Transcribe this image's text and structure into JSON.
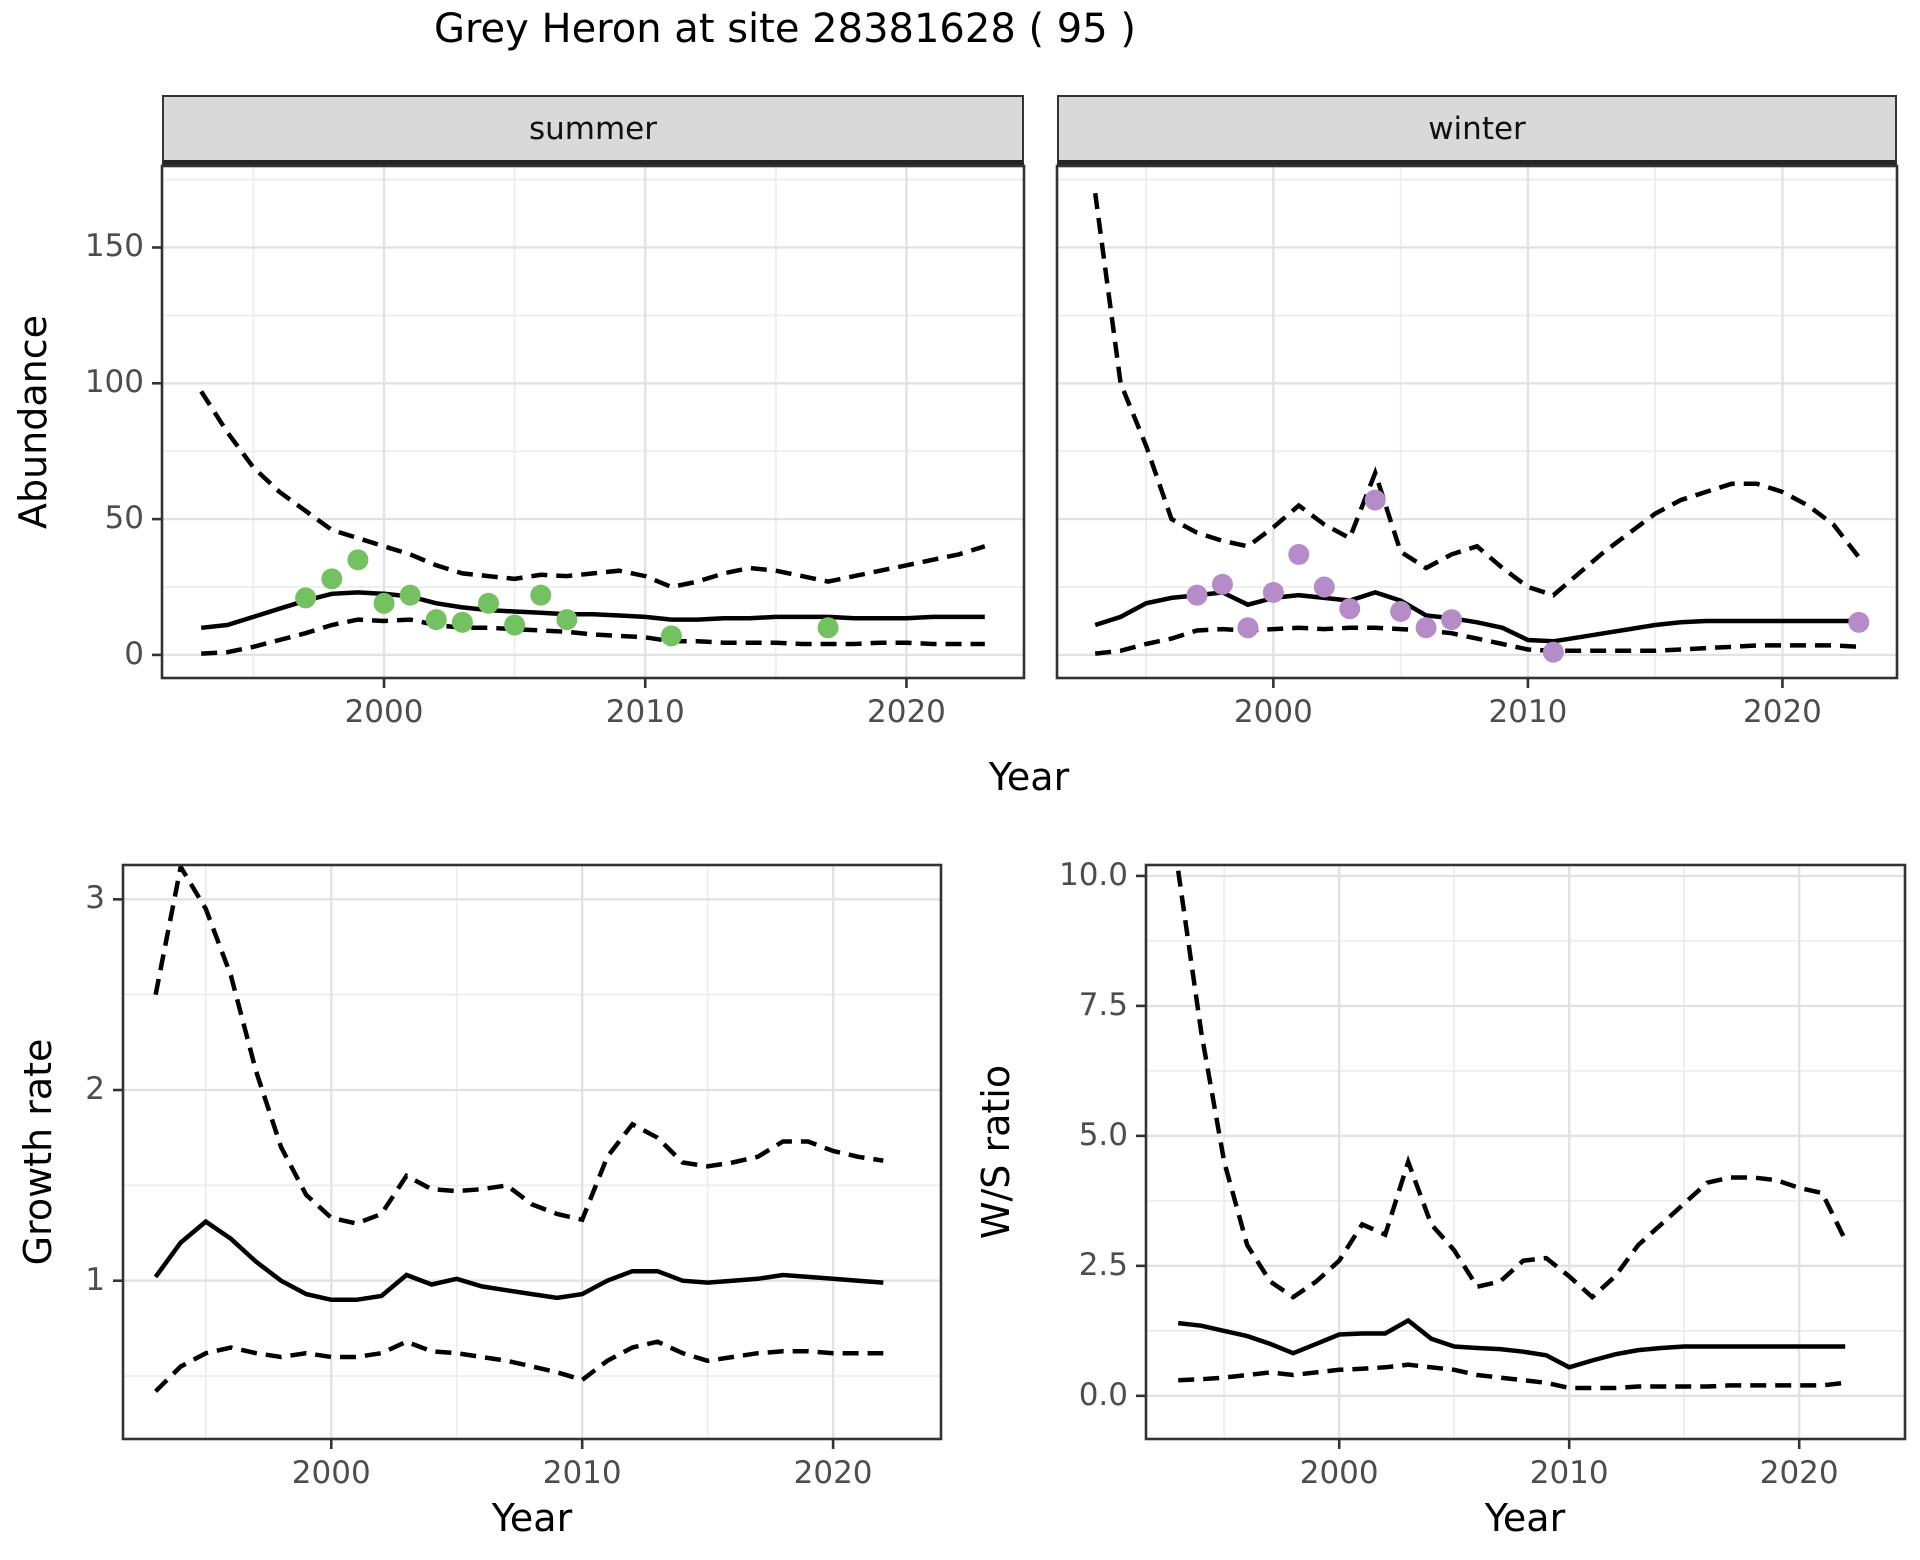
{
  "title": "Grey Heron at site 28381628 ( 95 )",
  "colors": {
    "summer_point": "#74C161",
    "winter_point": "#B58CC8",
    "line": "#000000",
    "grid_major": "#E2E2E2",
    "grid_minor": "#EDEDED",
    "strip_bg": "#D9D9D9",
    "panel_border": "#333333",
    "axis_text": "#4D4D4D"
  },
  "chart_data": [
    {
      "id": "abundance-summer",
      "type": "line",
      "facet_label": "summer",
      "xlabel": "Year",
      "ylabel": "Abundance",
      "xlim": [
        1991.5,
        2024.5
      ],
      "ylim": [
        -8.5,
        180
      ],
      "grid": true,
      "legend": "none",
      "xticks": {
        "major": [
          2000,
          2010,
          2020
        ],
        "major_labels": [
          "2000",
          "2010",
          "2020"
        ],
        "minor": [
          1995,
          2005,
          2015
        ]
      },
      "yticks": {
        "major": [
          0,
          50,
          100,
          150
        ],
        "major_labels": [
          "0",
          "50",
          "100",
          "150"
        ],
        "minor": [
          25,
          75,
          125,
          175
        ]
      },
      "series": [
        {
          "name": "upper-ci",
          "style": "dashed",
          "x": [
            1993,
            1994,
            1995,
            1996,
            1997,
            1998,
            1999,
            2000,
            2001,
            2002,
            2003,
            2004,
            2005,
            2006,
            2007,
            2008,
            2009,
            2010,
            2011,
            2012,
            2013,
            2014,
            2015,
            2016,
            2017,
            2018,
            2019,
            2020,
            2021,
            2022,
            2023
          ],
          "y": [
            97,
            82,
            69,
            60,
            53,
            46,
            43,
            40,
            37,
            33,
            30,
            29,
            28,
            29.5,
            29,
            30,
            31,
            29,
            25,
            27,
            30,
            32,
            31,
            29,
            27,
            29,
            31,
            33,
            35,
            37,
            40
          ]
        },
        {
          "name": "mean",
          "style": "solid",
          "x": [
            1993,
            1994,
            1995,
            1996,
            1997,
            1998,
            1999,
            2000,
            2001,
            2002,
            2003,
            2004,
            2005,
            2006,
            2007,
            2008,
            2009,
            2010,
            2011,
            2012,
            2013,
            2014,
            2015,
            2016,
            2017,
            2018,
            2019,
            2020,
            2021,
            2022,
            2023
          ],
          "y": [
            10,
            11,
            14,
            17,
            20,
            22.5,
            23,
            22.5,
            21.5,
            19,
            17.5,
            16.5,
            16,
            15.5,
            15,
            15,
            14.5,
            14,
            13,
            13,
            13.5,
            13.5,
            14,
            14,
            14,
            13.5,
            13.5,
            13.5,
            14,
            14,
            14
          ]
        },
        {
          "name": "lower-ci",
          "style": "dashed",
          "x": [
            1993,
            1994,
            1995,
            1996,
            1997,
            1998,
            1999,
            2000,
            2001,
            2002,
            2003,
            2004,
            2005,
            2006,
            2007,
            2008,
            2009,
            2010,
            2011,
            2012,
            2013,
            2014,
            2015,
            2016,
            2017,
            2018,
            2019,
            2020,
            2021,
            2022,
            2023
          ],
          "y": [
            0.5,
            1,
            3,
            5.5,
            8,
            11,
            13,
            12.5,
            13,
            11,
            10,
            10,
            9.5,
            9,
            8.5,
            7.5,
            7,
            6.5,
            5,
            5,
            4.5,
            4.5,
            4.5,
            4,
            4,
            4,
            4.5,
            4.5,
            4,
            4,
            4
          ]
        },
        {
          "name": "observations",
          "style": "points",
          "color_key": "summer_point",
          "x": [
            1997,
            1998,
            1999,
            2000,
            2001,
            2002,
            2003,
            2004,
            2005,
            2006,
            2007,
            2011,
            2017
          ],
          "y": [
            21,
            28,
            35,
            19,
            22,
            13,
            12,
            19,
            11,
            22,
            13,
            7,
            10
          ]
        }
      ]
    },
    {
      "id": "abundance-winter",
      "type": "line",
      "facet_label": "winter",
      "xlabel": "Year",
      "ylabel": "Abundance",
      "xlim": [
        1991.5,
        2024.5
      ],
      "ylim": [
        -8.5,
        180
      ],
      "grid": true,
      "legend": "none",
      "xticks": {
        "major": [
          2000,
          2010,
          2020
        ],
        "major_labels": [
          "2000",
          "2010",
          "2020"
        ],
        "minor": [
          1995,
          2005,
          2015
        ]
      },
      "yticks": {
        "major": [
          0,
          50,
          100,
          150
        ],
        "major_labels": [
          "0",
          "50",
          "100",
          "150"
        ],
        "minor": [
          25,
          75,
          125,
          175
        ]
      },
      "series": [
        {
          "name": "upper-ci",
          "style": "dashed",
          "x": [
            1993,
            1994,
            1995,
            1996,
            1997,
            1998,
            1999,
            2000,
            2001,
            2002,
            2003,
            2004,
            2005,
            2006,
            2007,
            2008,
            2009,
            2010,
            2011,
            2012,
            2013,
            2014,
            2015,
            2016,
            2017,
            2018,
            2019,
            2020,
            2021,
            2022,
            2023
          ],
          "y": [
            170,
            100,
            77,
            50,
            45,
            42,
            40,
            47,
            55,
            48,
            43,
            67,
            38,
            32,
            37,
            40,
            32,
            25,
            22,
            30,
            38,
            45,
            52,
            57,
            60,
            63,
            63,
            60,
            55,
            48,
            36
          ]
        },
        {
          "name": "mean",
          "style": "solid",
          "x": [
            1993,
            1994,
            1995,
            1996,
            1997,
            1998,
            1999,
            2000,
            2001,
            2002,
            2003,
            2004,
            2005,
            2006,
            2007,
            2008,
            2009,
            2010,
            2011,
            2012,
            2013,
            2014,
            2015,
            2016,
            2017,
            2018,
            2019,
            2020,
            2021,
            2022,
            2023
          ],
          "y": [
            11,
            14,
            19,
            21,
            22,
            23,
            18.5,
            21,
            22,
            21,
            20,
            23,
            20,
            14.5,
            13.5,
            12,
            10,
            5.5,
            5,
            6.5,
            8,
            9.5,
            11,
            12,
            12.5,
            12.5,
            12.5,
            12.5,
            12.5,
            12.5,
            12.5
          ]
        },
        {
          "name": "lower-ci",
          "style": "dashed",
          "x": [
            1993,
            1994,
            1995,
            1996,
            1997,
            1998,
            1999,
            2000,
            2001,
            2002,
            2003,
            2004,
            2005,
            2006,
            2007,
            2008,
            2009,
            2010,
            2011,
            2012,
            2013,
            2014,
            2015,
            2016,
            2017,
            2018,
            2019,
            2020,
            2021,
            2022,
            2023
          ],
          "y": [
            0.5,
            1.5,
            4,
            6,
            9,
            9.5,
            9,
            9.5,
            10,
            9.5,
            10,
            10,
            9.5,
            9,
            8,
            6,
            4,
            2,
            1.5,
            1.5,
            1.5,
            1.5,
            1.5,
            2,
            2.5,
            3,
            3.5,
            3.5,
            3.5,
            3.5,
            3
          ]
        },
        {
          "name": "observations",
          "style": "points",
          "color_key": "winter_point",
          "x": [
            1997,
            1998,
            1999,
            2000,
            2001,
            2002,
            2003,
            2004,
            2005,
            2006,
            2007,
            2011,
            2023
          ],
          "y": [
            22,
            26,
            10,
            23,
            37,
            25,
            17,
            57,
            16,
            10,
            13,
            1,
            12
          ]
        }
      ]
    },
    {
      "id": "growth-rate",
      "type": "line",
      "facet_label": "",
      "xlabel": "Year",
      "ylabel": "Growth rate",
      "xlim": [
        1991.7,
        2024.3
      ],
      "ylim": [
        0.17,
        3.18
      ],
      "grid": true,
      "legend": "none",
      "xticks": {
        "major": [
          2000,
          2010,
          2020
        ],
        "major_labels": [
          "2000",
          "2010",
          "2020"
        ],
        "minor": [
          1995,
          2005,
          2015
        ]
      },
      "yticks": {
        "major": [
          1,
          2,
          3
        ],
        "major_labels": [
          "1",
          "2",
          "3"
        ],
        "minor": [
          0.5,
          1.5,
          2.5
        ]
      },
      "series": [
        {
          "name": "upper-ci",
          "style": "dashed",
          "x": [
            1993,
            1994,
            1995,
            1996,
            1997,
            1998,
            1999,
            2000,
            2001,
            2002,
            2003,
            2004,
            2005,
            2006,
            2007,
            2008,
            2009,
            2010,
            2011,
            2012,
            2013,
            2014,
            2015,
            2016,
            2017,
            2018,
            2019,
            2020,
            2021,
            2022
          ],
          "y": [
            2.5,
            3.17,
            2.95,
            2.6,
            2.1,
            1.7,
            1.45,
            1.33,
            1.3,
            1.35,
            1.55,
            1.48,
            1.47,
            1.48,
            1.5,
            1.4,
            1.35,
            1.32,
            1.65,
            1.82,
            1.75,
            1.62,
            1.6,
            1.62,
            1.65,
            1.73,
            1.73,
            1.68,
            1.65,
            1.63
          ]
        },
        {
          "name": "mean",
          "style": "solid",
          "x": [
            1993,
            1994,
            1995,
            1996,
            1997,
            1998,
            1999,
            2000,
            2001,
            2002,
            2003,
            2004,
            2005,
            2006,
            2007,
            2008,
            2009,
            2010,
            2011,
            2012,
            2013,
            2014,
            2015,
            2016,
            2017,
            2018,
            2019,
            2020,
            2021,
            2022
          ],
          "y": [
            1.02,
            1.2,
            1.31,
            1.22,
            1.1,
            1.0,
            0.93,
            0.9,
            0.9,
            0.92,
            1.03,
            0.98,
            1.01,
            0.97,
            0.95,
            0.93,
            0.91,
            0.93,
            1.0,
            1.05,
            1.05,
            1.0,
            0.99,
            1.0,
            1.01,
            1.03,
            1.02,
            1.01,
            1.0,
            0.99
          ]
        },
        {
          "name": "lower-ci",
          "style": "dashed",
          "x": [
            1993,
            1994,
            1995,
            1996,
            1997,
            1998,
            1999,
            2000,
            2001,
            2002,
            2003,
            2004,
            2005,
            2006,
            2007,
            2008,
            2009,
            2010,
            2011,
            2012,
            2013,
            2014,
            2015,
            2016,
            2017,
            2018,
            2019,
            2020,
            2021,
            2022
          ],
          "y": [
            0.42,
            0.55,
            0.62,
            0.65,
            0.62,
            0.6,
            0.62,
            0.6,
            0.6,
            0.62,
            0.68,
            0.63,
            0.62,
            0.6,
            0.58,
            0.55,
            0.52,
            0.48,
            0.58,
            0.65,
            0.68,
            0.62,
            0.58,
            0.6,
            0.62,
            0.63,
            0.63,
            0.62,
            0.62,
            0.62
          ]
        }
      ]
    },
    {
      "id": "ws-ratio",
      "type": "line",
      "facet_label": "",
      "xlabel": "Year",
      "ylabel": "W/S ratio",
      "xlim": [
        1991.6,
        2024.6
      ],
      "ylim": [
        -0.83,
        10.21
      ],
      "grid": true,
      "legend": "none",
      "xticks": {
        "major": [
          2000,
          2010,
          2020
        ],
        "major_labels": [
          "2000",
          "2010",
          "2020"
        ],
        "minor": [
          1995,
          2005,
          2015
        ]
      },
      "yticks": {
        "major": [
          0,
          2.5,
          5,
          7.5,
          10
        ],
        "major_labels": [
          "0.0",
          "2.5",
          "5.0",
          "7.5",
          "10.0"
        ],
        "minor": [
          1.25,
          3.75,
          6.25,
          8.75
        ]
      },
      "series": [
        {
          "name": "upper-ci",
          "style": "dashed",
          "x": [
            1993,
            1994,
            1995,
            1996,
            1997,
            1998,
            1999,
            2000,
            2001,
            2002,
            2003,
            2004,
            2005,
            2006,
            2007,
            2008,
            2009,
            2010,
            2011,
            2012,
            2013,
            2014,
            2015,
            2016,
            2017,
            2018,
            2019,
            2020,
            2021,
            2022
          ],
          "y": [
            10.1,
            7.0,
            4.5,
            2.9,
            2.2,
            1.9,
            2.2,
            2.6,
            3.3,
            3.1,
            4.5,
            3.3,
            2.8,
            2.1,
            2.2,
            2.6,
            2.65,
            2.3,
            1.9,
            2.3,
            2.9,
            3.3,
            3.7,
            4.1,
            4.2,
            4.2,
            4.15,
            4.0,
            3.9,
            3.0
          ]
        },
        {
          "name": "mean",
          "style": "solid",
          "x": [
            1993,
            1994,
            1995,
            1996,
            1997,
            1998,
            1999,
            2000,
            2001,
            2002,
            2003,
            2004,
            2005,
            2006,
            2007,
            2008,
            2009,
            2010,
            2011,
            2012,
            2013,
            2014,
            2015,
            2016,
            2017,
            2018,
            2019,
            2020,
            2021,
            2022
          ],
          "y": [
            1.4,
            1.35,
            1.25,
            1.15,
            1.0,
            0.82,
            1.0,
            1.18,
            1.2,
            1.2,
            1.45,
            1.1,
            0.95,
            0.92,
            0.9,
            0.85,
            0.78,
            0.55,
            0.68,
            0.8,
            0.88,
            0.92,
            0.95,
            0.95,
            0.95,
            0.95,
            0.95,
            0.95,
            0.95,
            0.95
          ]
        },
        {
          "name": "lower-ci",
          "style": "dashed",
          "x": [
            1993,
            1994,
            1995,
            1996,
            1997,
            1998,
            1999,
            2000,
            2001,
            2002,
            2003,
            2004,
            2005,
            2006,
            2007,
            2008,
            2009,
            2010,
            2011,
            2012,
            2013,
            2014,
            2015,
            2016,
            2017,
            2018,
            2019,
            2020,
            2021,
            2022
          ],
          "y": [
            0.3,
            0.32,
            0.35,
            0.4,
            0.45,
            0.4,
            0.45,
            0.5,
            0.52,
            0.55,
            0.6,
            0.55,
            0.5,
            0.4,
            0.35,
            0.3,
            0.25,
            0.15,
            0.15,
            0.15,
            0.18,
            0.18,
            0.18,
            0.18,
            0.2,
            0.2,
            0.2,
            0.2,
            0.2,
            0.25
          ]
        }
      ]
    }
  ]
}
